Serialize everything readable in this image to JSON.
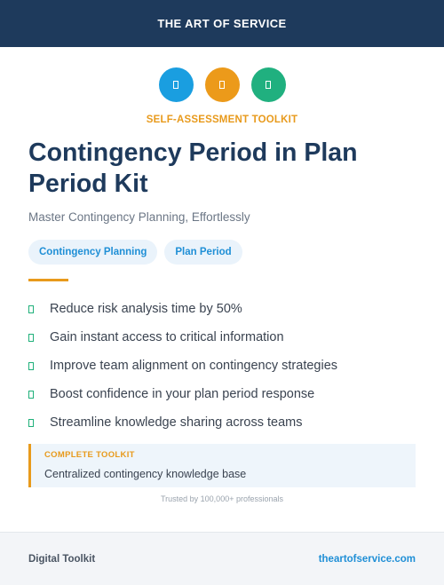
{
  "header": {
    "brand": "THE ART OF SERVICE"
  },
  "icons": [
    {
      "name": "document-icon",
      "color": "#1a9ee0"
    },
    {
      "name": "document-icon",
      "color": "#ec9a1a"
    },
    {
      "name": "document-icon",
      "color": "#20b07f"
    }
  ],
  "kicker": "SELF-ASSESSMENT TOOLKIT",
  "title": "Contingency Period in Plan Period Kit",
  "subtitle": "Master Contingency Planning, Effortlessly",
  "tags": [
    "Contingency Planning",
    "Plan Period"
  ],
  "benefits": [
    "Reduce risk analysis time by 50%",
    "Gain instant access to critical information",
    "Improve team alignment on contingency strategies",
    "Boost confidence in your plan period response",
    "Streamline knowledge sharing across teams"
  ],
  "callout": {
    "label": "COMPLETE TOOLKIT",
    "text": "Centralized contingency knowledge base"
  },
  "trusted": "Trusted by 100,000+ professionals",
  "footer": {
    "left": "Digital Toolkit",
    "right": "theartofservice.com"
  }
}
